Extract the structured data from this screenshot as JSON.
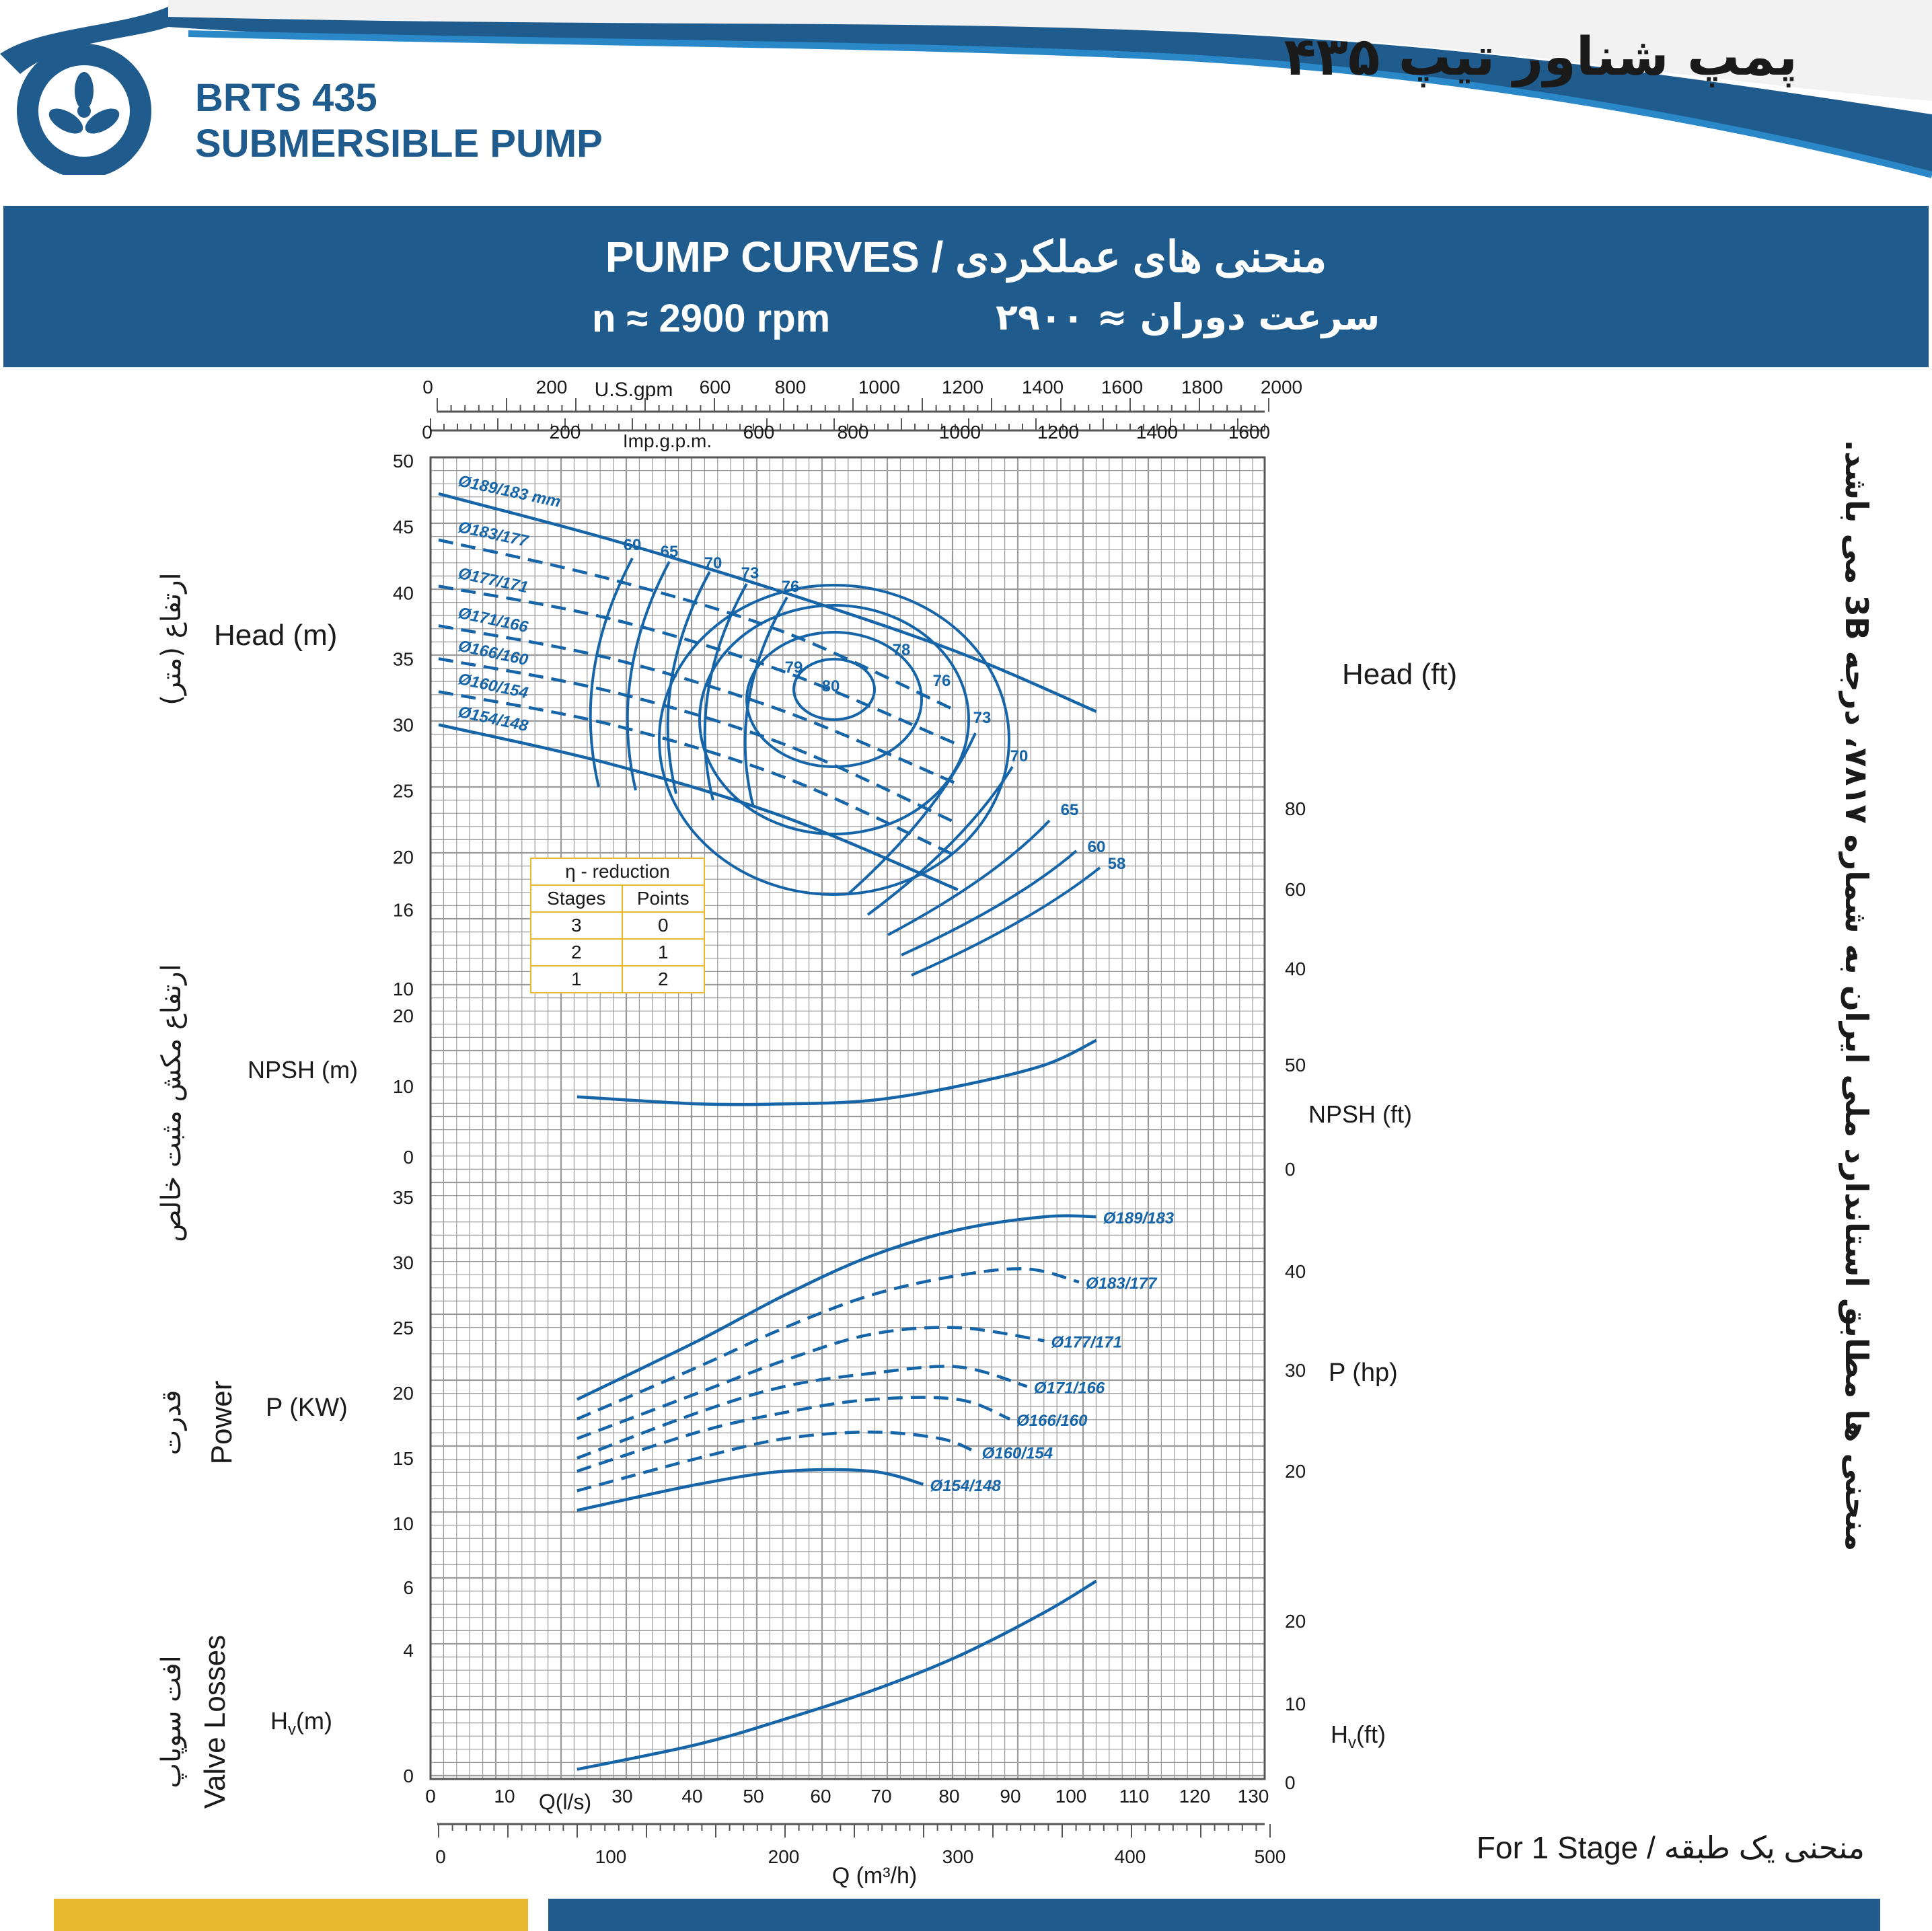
{
  "header": {
    "brand_line1": "BRTS 435",
    "brand_line2": "SUBMERSIBLE PUMP",
    "title_fa": "پمپ شناور تیپ ۴۳۵",
    "logo": "fan-logo-icon"
  },
  "banner": {
    "title": "PUMP CURVES  /  منحنی های عملکردی",
    "rpm": "n ≈ 2900 rpm",
    "rpm_fa": "سرعت دوران ≈ ۲۹۰۰"
  },
  "labels": {
    "head_m": "Head (m)",
    "head_ft": "Head (ft)",
    "head_fa": "ارتفاع (متر)",
    "npsh_m": "NPSH (m)",
    "npsh_ft": "NPSH (ft)",
    "npsh_fa": "ارتفاع مکش مثبت خالص",
    "power": "Power",
    "power_fa": "قدرت",
    "p_kw": "P (KW)",
    "p_hp": "P (hp)",
    "valve": "Valve Losses",
    "valve_fa": "افت سوپاپ",
    "hv_m_main": "H",
    "hv_m_sub": "v",
    "hv_m_unit": "(m)",
    "hv_ft_main": "H",
    "hv_ft_sub": "v",
    "hv_ft_unit": "(ft)",
    "usgpm": "U.S.gpm",
    "impgpm": "Imp.g.p.m.",
    "qls": "Q(l/s)",
    "qm3h": "Q (m³/h)",
    "note_fa": "منحنی ها مطابق استاندارد ملی ایران به شماره ۷۸۱۷، درجه 3B می باشد.",
    "stage_note": "For 1 Stage  /  منحنی یک طبقه"
  },
  "eta_table": {
    "title": "η - reduction",
    "headers": [
      "Stages",
      "Points"
    ],
    "rows": [
      [
        "3",
        "0"
      ],
      [
        "2",
        "1"
      ],
      [
        "1",
        "2"
      ]
    ]
  },
  "chart_data": [
    {
      "type": "line",
      "title": "Head",
      "xlabel": "Q (m³/h)",
      "ylabel": "Head (m)",
      "xlim": [
        0,
        500
      ],
      "y_ticks": [
        10,
        16,
        20,
        25,
        30,
        35,
        40,
        45,
        50
      ],
      "y_ticks_ft": [
        40,
        60,
        80
      ],
      "series": [
        {
          "name": "Ø189/183 mm",
          "style": "solid",
          "x": [
            0,
            100,
            200,
            300,
            380
          ],
          "y": [
            47.5,
            44,
            40,
            35.5,
            31
          ]
        },
        {
          "name": "Ø183/177",
          "style": "dashed",
          "x": [
            0,
            100,
            200,
            300
          ],
          "y": [
            44,
            41,
            37,
            31
          ]
        },
        {
          "name": "Ø177/171",
          "style": "dashed",
          "x": [
            0,
            100,
            200,
            300
          ],
          "y": [
            40.5,
            38,
            34,
            28.5
          ]
        },
        {
          "name": "Ø171/166",
          "style": "dashed",
          "x": [
            0,
            100,
            200,
            300
          ],
          "y": [
            37.5,
            35,
            31,
            25.5
          ]
        },
        {
          "name": "Ø166/160",
          "style": "dashed",
          "x": [
            0,
            100,
            200,
            300
          ],
          "y": [
            35,
            32.5,
            28.5,
            22.5
          ]
        },
        {
          "name": "Ø160/154",
          "style": "dashed",
          "x": [
            0,
            100,
            200,
            300
          ],
          "y": [
            32.5,
            30,
            26,
            20
          ]
        },
        {
          "name": "Ø154/148",
          "style": "solid",
          "x": [
            0,
            100,
            200,
            300
          ],
          "y": [
            30,
            27,
            23,
            17.5
          ]
        }
      ],
      "efficiency_labels": [
        "60",
        "65",
        "70",
        "73",
        "76",
        "78",
        "79",
        "80",
        "76",
        "73",
        "70",
        "65",
        "60",
        "58"
      ]
    },
    {
      "type": "line",
      "title": "NPSH",
      "ylabel": "NPSH (m)",
      "y_ticks": [
        0,
        10,
        20
      ],
      "y_ticks_ft": [
        0,
        50
      ],
      "series": [
        {
          "x": [
            80,
            150,
            200,
            250,
            300,
            350,
            380
          ],
          "y": [
            8.5,
            7.5,
            7.5,
            8,
            10,
            13,
            16.5
          ]
        }
      ]
    },
    {
      "type": "line",
      "title": "Power",
      "ylabel": "P (KW)",
      "y_ticks": [
        10,
        15,
        20,
        25,
        30,
        35
      ],
      "y_ticks_hp": [
        20,
        30,
        40
      ],
      "series": [
        {
          "name": "Ø189/183",
          "style": "solid",
          "x": [
            80,
            150,
            200,
            250,
            300,
            350,
            380
          ],
          "y": [
            19.5,
            24,
            27.5,
            30.5,
            32.5,
            33.5,
            33.5
          ]
        },
        {
          "name": "Ø183/177",
          "style": "dashed",
          "x": [
            80,
            150,
            200,
            250,
            300,
            340,
            370
          ],
          "y": [
            18,
            22,
            25,
            27.5,
            29,
            29.5,
            28.5
          ]
        },
        {
          "name": "Ø177/171",
          "style": "dashed",
          "x": [
            80,
            150,
            200,
            250,
            300,
            350
          ],
          "y": [
            16.5,
            20,
            22.5,
            24.5,
            25,
            24
          ]
        },
        {
          "name": "Ø171/166",
          "style": "dashed",
          "x": [
            80,
            150,
            200,
            250,
            300,
            340
          ],
          "y": [
            15,
            18.5,
            20.5,
            21.5,
            22,
            20.5
          ]
        },
        {
          "name": "Ø166/160",
          "style": "dashed",
          "x": [
            80,
            150,
            200,
            250,
            300,
            330
          ],
          "y": [
            14,
            17,
            18.5,
            19.5,
            19.5,
            18
          ]
        },
        {
          "name": "Ø160/154",
          "style": "dashed",
          "x": [
            80,
            150,
            200,
            250,
            290,
            310
          ],
          "y": [
            12.5,
            15,
            16.5,
            17,
            16.5,
            15.5
          ]
        },
        {
          "name": "Ø154/148",
          "style": "solid",
          "x": [
            80,
            150,
            200,
            250,
            280
          ],
          "y": [
            11,
            13,
            14,
            14,
            13
          ]
        }
      ]
    },
    {
      "type": "line",
      "title": "Valve Losses",
      "ylabel": "Hv(m)",
      "y_ticks": [
        0,
        4,
        6
      ],
      "y_ticks_ft": [
        0,
        10,
        20
      ],
      "series": [
        {
          "x": [
            80,
            150,
            200,
            250,
            300,
            350,
            380
          ],
          "y": [
            0.2,
            1,
            1.8,
            2.7,
            3.8,
            5.2,
            6.2
          ]
        }
      ]
    }
  ],
  "axes": {
    "usgpm_ticks": [
      "0",
      "200",
      "600",
      "800",
      "1000",
      "1200",
      "1400",
      "1600",
      "1800",
      "2000"
    ],
    "impgpm_ticks": [
      "0",
      "200",
      "600",
      "800",
      "1000",
      "1200",
      "1400",
      "1600"
    ],
    "qls_ticks": [
      "0",
      "10",
      "30",
      "40",
      "50",
      "60",
      "70",
      "80",
      "90",
      "100",
      "110",
      "120",
      "130"
    ],
    "qm3h_ticks": [
      "0",
      "100",
      "200",
      "300",
      "400",
      "500"
    ]
  },
  "colors": {
    "brand_blue": "#1f5b8c",
    "curve_blue": "#1565a8",
    "grid": "#9a9a9a",
    "accent_yellow": "#e8b92f"
  }
}
